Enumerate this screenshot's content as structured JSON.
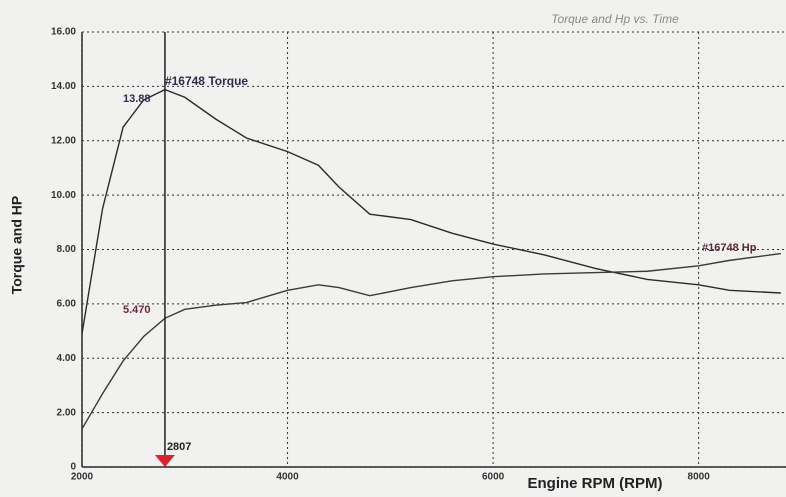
{
  "chart_data": {
    "type": "line",
    "title": "Torque and Hp vs. Time",
    "x_label": "Engine RPM (RPM)",
    "y_label": "Torque and HP",
    "x": [
      2000,
      2200,
      2400,
      2600,
      2807,
      3000,
      3300,
      3600,
      4000,
      4300,
      4500,
      4800,
      5200,
      5600,
      6000,
      6500,
      7000,
      7500,
      8000,
      8300,
      8800
    ],
    "series": [
      {
        "name": "#16748 Torque",
        "color": "#2b2b2b",
        "values": [
          4.9,
          9.5,
          12.5,
          13.5,
          13.88,
          13.6,
          12.8,
          12.1,
          11.6,
          11.1,
          10.3,
          9.3,
          9.1,
          8.6,
          8.2,
          7.8,
          7.3,
          6.9,
          6.7,
          6.5,
          6.4
        ]
      },
      {
        "name": "#16748 Hp",
        "color": "#3a3a3a",
        "values": [
          1.4,
          2.7,
          3.9,
          4.8,
          5.47,
          5.8,
          5.95,
          6.05,
          6.5,
          6.7,
          6.6,
          6.3,
          6.6,
          6.85,
          7.0,
          7.1,
          7.15,
          7.2,
          7.4,
          7.6,
          7.85
        ]
      }
    ],
    "annotations": [
      {
        "text": "13.88"
      },
      {
        "text": "5.470"
      },
      {
        "text": "2807"
      }
    ],
    "xlim": [
      2000,
      8850
    ],
    "xticks": [
      2000,
      4000,
      6000,
      8000
    ],
    "ylim": [
      0,
      16
    ],
    "yticks": [
      0,
      {
        "value": 2,
        "label": "2.00"
      },
      {
        "value": 4,
        "label": "4.00"
      },
      {
        "value": 6,
        "label": "6.00"
      },
      {
        "value": 8,
        "label": "8.00"
      },
      {
        "value": 10,
        "label": "10.00"
      },
      {
        "value": 12,
        "label": "12.00"
      },
      {
        "value": 14,
        "label": "14.00"
      },
      {
        "value": 16,
        "label": "16.00"
      }
    ],
    "grid": true
  }
}
